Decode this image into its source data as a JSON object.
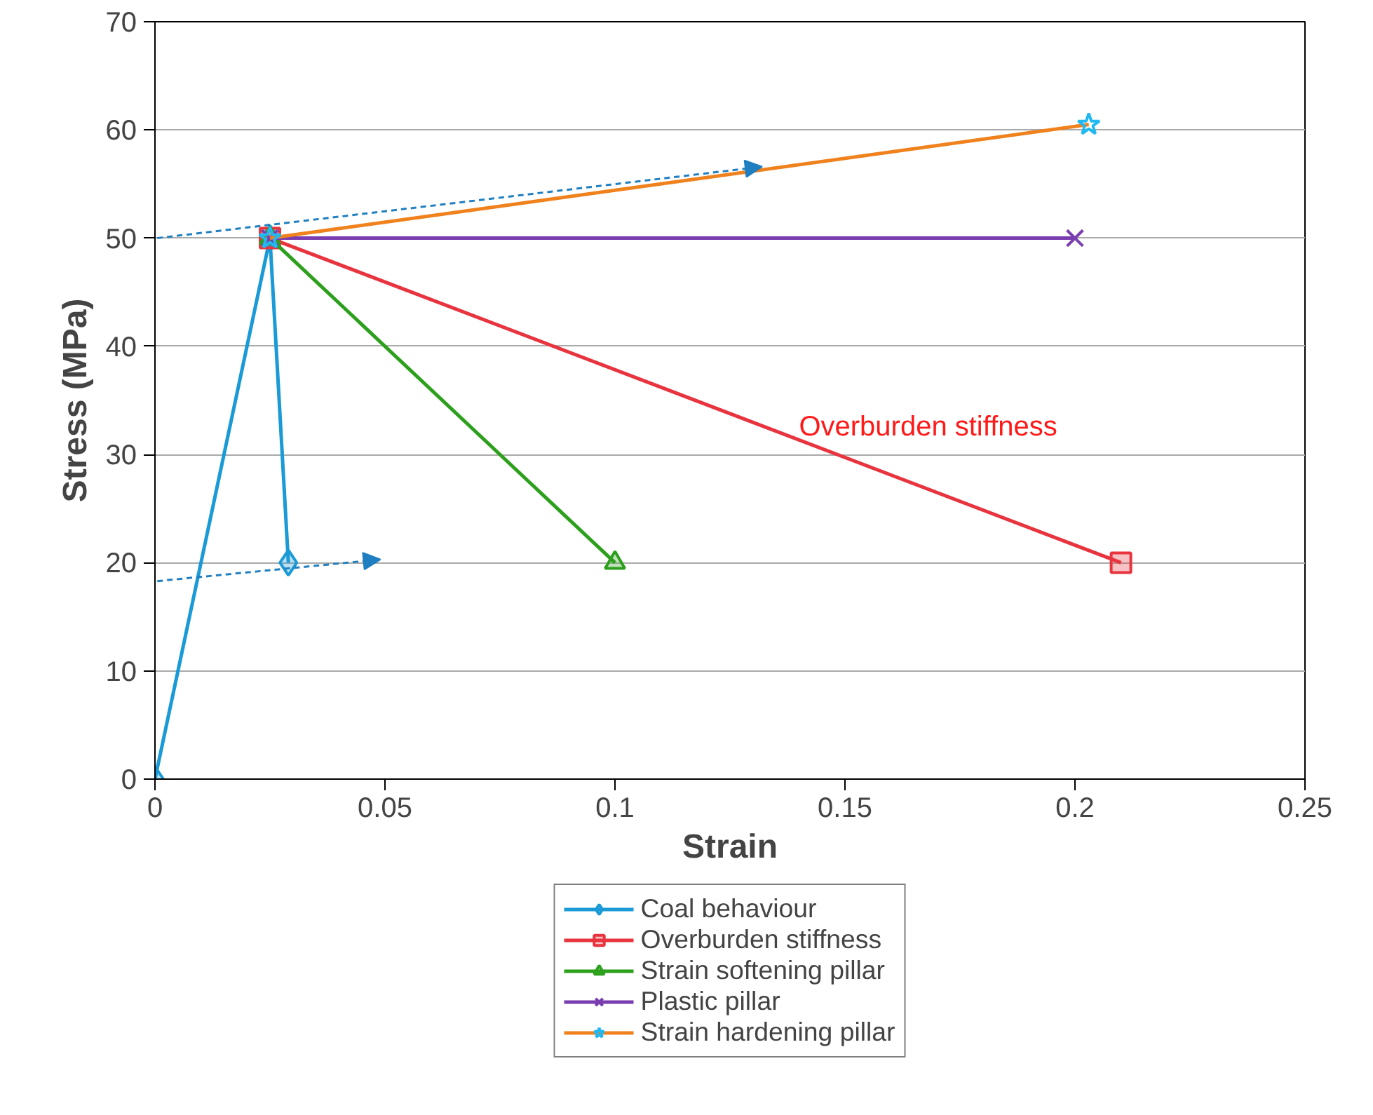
{
  "chart_data": {
    "type": "line",
    "xlabel": "Strain",
    "ylabel": "Stress (MPa)",
    "xlim": [
      0,
      0.25
    ],
    "ylim": [
      0,
      70
    ],
    "xticks": [
      0,
      0.05,
      0.1,
      0.15,
      0.2,
      0.25
    ],
    "yticks": [
      0,
      10,
      20,
      30,
      40,
      50,
      60,
      70
    ],
    "grid": "y",
    "legend": "bottom",
    "series": [
      {
        "name": "Coal behaviour",
        "color": "#1a9ad6",
        "marker": "diamond",
        "x": [
          0,
          0.025,
          0.029
        ],
        "values": [
          0,
          50,
          20
        ]
      },
      {
        "name": "Overburden stiffness",
        "color": "#e8343f",
        "marker": "square",
        "x": [
          0.025,
          0.21
        ],
        "values": [
          50,
          20
        ]
      },
      {
        "name": "Strain softening pillar",
        "color": "#2ca01c",
        "marker": "triangle",
        "x": [
          0.025,
          0.1
        ],
        "values": [
          50,
          20
        ]
      },
      {
        "name": "Plastic pillar",
        "color": "#7a3db0",
        "marker": "cross",
        "x": [
          0.025,
          0.2
        ],
        "values": [
          50,
          50
        ]
      },
      {
        "name": "Strain hardening pillar",
        "color": "#f0821e",
        "marker": "star",
        "x": [
          0.025,
          0.203
        ],
        "values": [
          50,
          60.5
        ]
      }
    ],
    "annotations": [
      "Overburden stiffness"
    ]
  }
}
